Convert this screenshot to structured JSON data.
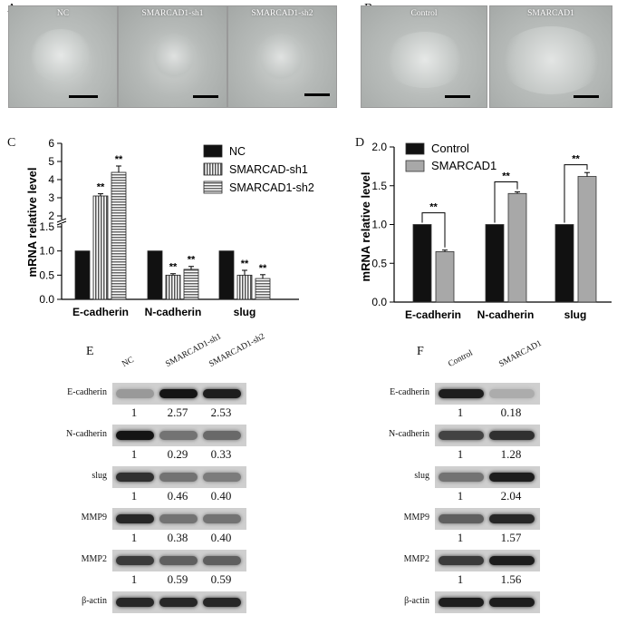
{
  "panels": {
    "A": "A",
    "B": "B",
    "C": "C",
    "D": "D",
    "E": "E",
    "F": "F"
  },
  "micrographs_A": [
    "NC",
    "SMARCAD1-sh1",
    "SMARCAD1-sh2"
  ],
  "micrographs_B": [
    "Control",
    "SMARCAD1"
  ],
  "chart_data": [
    {
      "type": "bar",
      "categories": [
        "E-cadherin",
        "N-cadherin",
        "slug"
      ],
      "ylabel": "mRNA relative level",
      "ylim": [
        0,
        6
      ],
      "broken_axis": true,
      "yticks": [
        "0.0",
        "0.5",
        "1.0",
        "1.5",
        "2",
        "3",
        "4",
        "5",
        "6"
      ],
      "legend_position": "top-right",
      "series": [
        {
          "name": "NC",
          "values": [
            1,
            1,
            1
          ],
          "color": "#111111",
          "pattern": "solid"
        },
        {
          "name": "SMARCAD-sh1",
          "values": [
            3.1,
            0.5,
            0.5
          ],
          "color": "#cfcfcf",
          "pattern": "vertical-stripes"
        },
        {
          "name": "SMARCAD1-sh2",
          "values": [
            4.4,
            0.62,
            0.43
          ],
          "color": "#d6d6d6",
          "pattern": "horizontal-stripes"
        }
      ],
      "errors": [
        [
          0,
          0,
          0
        ],
        [
          0.12,
          0.03,
          0.1
        ],
        [
          0.35,
          0.06,
          0.08
        ]
      ],
      "significance": [
        "**",
        "**",
        "**",
        "**",
        "**",
        "**"
      ]
    },
    {
      "type": "bar",
      "categories": [
        "E-cadherin",
        "N-cadherin",
        "slug"
      ],
      "ylabel": "mRNA relative level",
      "ylim": [
        0,
        2.0
      ],
      "yticks": [
        "0.0",
        "0.5",
        "1.0",
        "1.5",
        "2.0"
      ],
      "legend_position": "top-left",
      "series": [
        {
          "name": "Control",
          "values": [
            1,
            1,
            1
          ],
          "color": "#111111"
        },
        {
          "name": "SMARCAD1",
          "values": [
            0.65,
            1.4,
            1.62
          ],
          "color": "#a8a8a8"
        }
      ],
      "errors": [
        [
          0,
          0,
          0
        ],
        [
          0.02,
          0.02,
          0.05
        ]
      ],
      "significance": [
        "**",
        "**",
        "**"
      ]
    }
  ],
  "blot_E": {
    "lanes": [
      "NC",
      "SMARCAD1-sh1",
      "SMARCAD1-sh2"
    ],
    "rows": [
      {
        "protein": "E-cadherin",
        "values": [
          "1",
          "2.57",
          "2.53"
        ],
        "intensity": [
          0.25,
          0.95,
          0.9
        ]
      },
      {
        "protein": "N-cadherin",
        "values": [
          "1",
          "0.29",
          "0.33"
        ],
        "intensity": [
          0.95,
          0.45,
          0.5
        ]
      },
      {
        "protein": "slug",
        "values": [
          "1",
          "0.46",
          "0.40"
        ],
        "intensity": [
          0.8,
          0.45,
          0.4
        ]
      },
      {
        "protein": "MMP9",
        "values": [
          "1",
          "0.38",
          "0.40"
        ],
        "intensity": [
          0.85,
          0.45,
          0.45
        ]
      },
      {
        "protein": "MMP2",
        "values": [
          "1",
          "0.59",
          "0.59"
        ],
        "intensity": [
          0.75,
          0.55,
          0.55
        ]
      },
      {
        "protein": "β-actin",
        "values": [],
        "intensity": [
          0.85,
          0.85,
          0.85
        ]
      }
    ]
  },
  "blot_F": {
    "lanes": [
      "Control",
      "SMARCAD1"
    ],
    "rows": [
      {
        "protein": "E-cadherin",
        "values": [
          "1",
          "0.18"
        ],
        "intensity": [
          0.9,
          0.15
        ]
      },
      {
        "protein": "N-cadherin",
        "values": [
          "1",
          "1.28"
        ],
        "intensity": [
          0.7,
          0.8
        ]
      },
      {
        "protein": "slug",
        "values": [
          "1",
          "2.04"
        ],
        "intensity": [
          0.45,
          0.9
        ]
      },
      {
        "protein": "MMP9",
        "values": [
          "1",
          "1.57"
        ],
        "intensity": [
          0.55,
          0.85
        ]
      },
      {
        "protein": "MMP2",
        "values": [
          "1",
          "1.56"
        ],
        "intensity": [
          0.75,
          0.9
        ]
      },
      {
        "protein": "β-actin",
        "values": [],
        "intensity": [
          0.9,
          0.9
        ]
      }
    ]
  }
}
